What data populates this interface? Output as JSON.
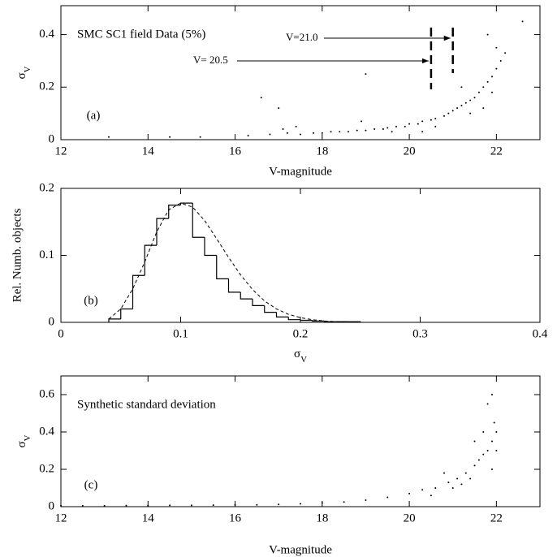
{
  "chart_data": [
    {
      "type": "scatter",
      "title": "SMC SC1 field Data (5%)",
      "panel_label": "(a)",
      "x_label": "V-magnitude",
      "y_label": "σ",
      "y_label_sub": "V",
      "color": "#000000",
      "xlim": [
        12,
        23
      ],
      "ylim": [
        0,
        0.51
      ],
      "xticks": [
        12,
        14,
        16,
        18,
        20,
        22
      ],
      "yticks": [
        0,
        0.2,
        0.4
      ],
      "thresholds": [
        {
          "value": 20.5,
          "label": "V= 20.5"
        },
        {
          "value": 21,
          "label": "V=21.0"
        }
      ],
      "x": [
        13.1,
        14.5,
        15.2,
        16.3,
        16.6,
        16.8,
        17.0,
        17.2,
        17.5,
        17.8,
        18.0,
        18.2,
        18.4,
        18.6,
        18.8,
        19.0,
        19.2,
        19.4,
        19.5,
        19.7,
        19.9,
        20.0,
        20.2,
        20.3,
        20.5,
        20.6,
        20.8,
        20.9,
        21.0,
        21.1,
        21.2,
        21.3,
        21.4,
        21.5,
        21.6,
        21.7,
        21.8,
        21.9,
        22.0,
        22.1,
        21.4,
        21.7,
        21.9,
        22.0,
        21.2,
        20.6,
        19.6,
        17.4,
        19.0,
        22.6,
        20.3,
        21.8,
        22.2,
        18.9,
        17.1
      ],
      "y": [
        0.01,
        0.01,
        0.01,
        0.015,
        0.16,
        0.02,
        0.12,
        0.025,
        0.02,
        0.025,
        0.025,
        0.03,
        0.03,
        0.03,
        0.035,
        0.035,
        0.04,
        0.04,
        0.045,
        0.05,
        0.05,
        0.06,
        0.06,
        0.07,
        0.075,
        0.08,
        0.09,
        0.1,
        0.11,
        0.12,
        0.13,
        0.14,
        0.15,
        0.16,
        0.18,
        0.2,
        0.22,
        0.24,
        0.27,
        0.3,
        0.1,
        0.12,
        0.18,
        0.35,
        0.2,
        0.05,
        0.03,
        0.05,
        0.25,
        0.45,
        0.03,
        0.4,
        0.33,
        0.07,
        0.04
      ]
    },
    {
      "type": "histogram",
      "panel_label": "(b)",
      "x_label": "σ",
      "x_label_sub": "V",
      "y_label": "Rel. Numb. objects",
      "color": "#000000",
      "xlim": [
        0,
        0.4
      ],
      "ylim": [
        0,
        0.2
      ],
      "xticks": [
        0,
        0.1,
        0.2,
        0.3,
        0.4
      ],
      "yticks": [
        0,
        0.1,
        0.2
      ],
      "bins": [
        0.04,
        0.05,
        0.06,
        0.07,
        0.08,
        0.09,
        0.1,
        0.11,
        0.12,
        0.13,
        0.14,
        0.15,
        0.16,
        0.17,
        0.18,
        0.19,
        0.2,
        0.21,
        0.22,
        0.23,
        0.24,
        0.25
      ],
      "counts": [
        0.005,
        0.02,
        0.07,
        0.115,
        0.155,
        0.175,
        0.178,
        0.127,
        0.1,
        0.065,
        0.045,
        0.035,
        0.025,
        0.015,
        0.008,
        0.004,
        0.003,
        0.002,
        0.001,
        0.001,
        0.001
      ],
      "curve": {
        "x": [
          0.04,
          0.05,
          0.06,
          0.07,
          0.08,
          0.09,
          0.1,
          0.11,
          0.12,
          0.13,
          0.14,
          0.15,
          0.16,
          0.17,
          0.18,
          0.19,
          0.2,
          0.21,
          0.22,
          0.23,
          0.24,
          0.25
        ],
        "y": [
          0.005,
          0.02,
          0.05,
          0.09,
          0.135,
          0.168,
          0.178,
          0.172,
          0.152,
          0.125,
          0.097,
          0.071,
          0.049,
          0.032,
          0.02,
          0.012,
          0.007,
          0.004,
          0.002,
          0.001,
          0.0005,
          0
        ]
      }
    },
    {
      "type": "scatter",
      "title": "Synthetic standard deviation",
      "panel_label": "(c)",
      "x_label": "V-magnitude",
      "y_label": "σ",
      "y_label_sub": "V",
      "color": "#000000",
      "xlim": [
        12,
        23
      ],
      "ylim": [
        0,
        0.7
      ],
      "xticks": [
        12,
        14,
        16,
        18,
        20,
        22
      ],
      "yticks": [
        0,
        0.2,
        0.4,
        0.6
      ],
      "x": [
        12.0,
        12.5,
        13.0,
        13.5,
        14.0,
        14.5,
        15.0,
        15.5,
        16.0,
        16.5,
        17.0,
        17.5,
        18.0,
        18.5,
        19.0,
        19.5,
        20.0,
        20.3,
        20.6,
        20.9,
        21.1,
        21.3,
        21.5,
        21.6,
        21.7,
        21.8,
        21.9,
        22.0,
        21.9,
        21.8,
        21.5,
        21.2,
        20.8,
        21.9,
        21.95,
        21.4,
        21.7,
        20.5,
        21.0,
        22.0
      ],
      "y": [
        0.005,
        0.005,
        0.005,
        0.006,
        0.006,
        0.007,
        0.007,
        0.008,
        0.009,
        0.01,
        0.012,
        0.015,
        0.02,
        0.025,
        0.035,
        0.05,
        0.07,
        0.09,
        0.1,
        0.13,
        0.15,
        0.18,
        0.22,
        0.25,
        0.28,
        0.3,
        0.35,
        0.4,
        0.6,
        0.55,
        0.35,
        0.12,
        0.18,
        0.2,
        0.45,
        0.15,
        0.4,
        0.06,
        0.1,
        0.3
      ]
    }
  ]
}
